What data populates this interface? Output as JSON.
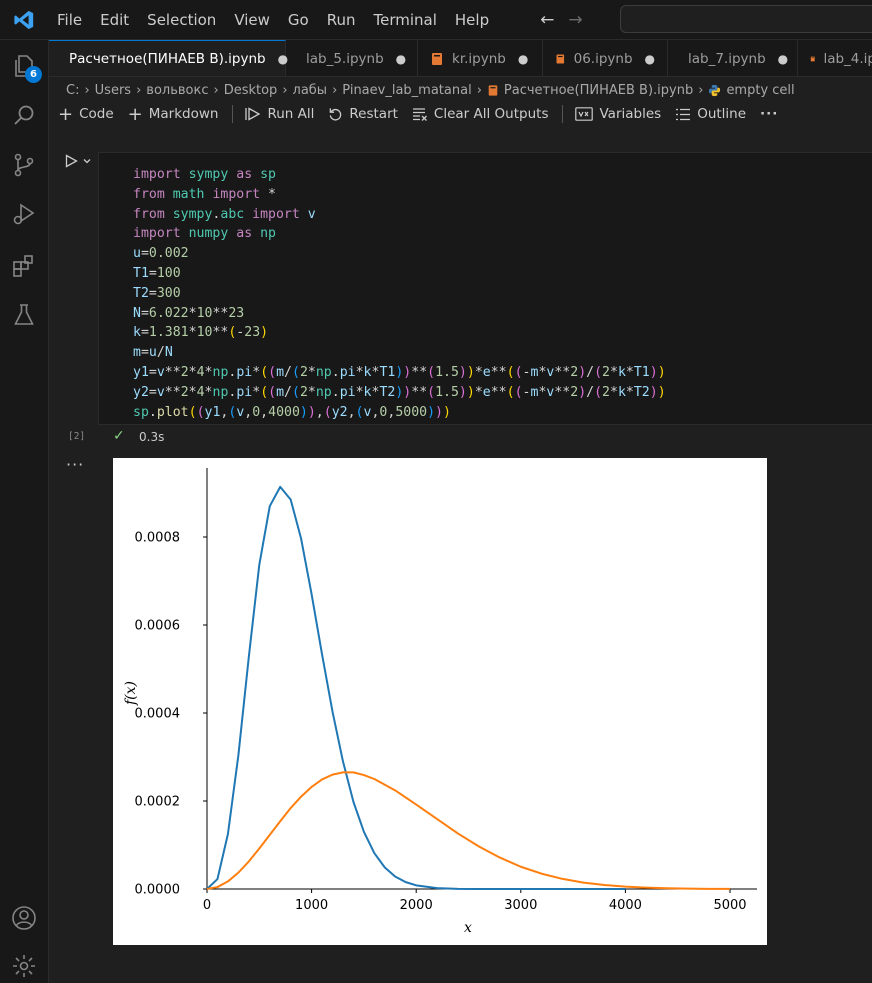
{
  "menu": [
    "File",
    "Edit",
    "Selection",
    "View",
    "Go",
    "Run",
    "Terminal",
    "Help"
  ],
  "activity": {
    "explorer_badge": "6"
  },
  "tabs": [
    {
      "label": "Расчетное(ПИНАЕВ В).ipynb",
      "active": true,
      "modified": "●"
    },
    {
      "label": "lab_5.ipynb",
      "modified": "●"
    },
    {
      "label": "kr.ipynb",
      "modified": "●"
    },
    {
      "label": "06.ipynb",
      "modified": "●"
    },
    {
      "label": "lab_7.ipynb",
      "modified": "●"
    },
    {
      "label": "lab_4.ip"
    }
  ],
  "breadcrumb": [
    "C:",
    "Users",
    "вольвокс",
    "Desktop",
    "лабы",
    "Pinaev_lab_matanal",
    "Расчетное(ПИНАЕВ В).ipynb",
    "empty cell"
  ],
  "toolbar": {
    "code": "Code",
    "markdown": "Markdown",
    "run_all": "Run All",
    "restart": "Restart",
    "clear_outputs": "Clear All Outputs",
    "variables": "Variables",
    "outline": "Outline",
    "more": "···"
  },
  "cell": {
    "exec_count": "[2]",
    "exec_time": "0.3s",
    "output_menu": "···",
    "code_lines": [
      "import sympy as sp",
      "from math import *",
      "from sympy.abc import v",
      "import numpy as np",
      "u=0.002",
      "T1=100",
      "T2=300",
      "N=6.022*10**23",
      "k=1.381*10**(-23)",
      "m=u/N",
      "y1=v**2*4*np.pi*((m/(2*np.pi*k*T1))**(1.5))*e**((-m*v**2)/(2*k*T1))",
      "y2=v**2*4*np.pi*((m/(2*np.pi*k*T2))**(1.5))*e**((-m*v**2)/(2*k*T2))",
      "sp.plot((y1,(v,0,4000)),(y2,(v,0,5000)))"
    ]
  },
  "chart_data": {
    "type": "line",
    "xlabel": "x",
    "ylabel": "f(x)",
    "xlim": [
      0,
      5000
    ],
    "ylim": [
      0,
      0.00096
    ],
    "x_ticks": [
      0,
      1000,
      2000,
      3000,
      4000,
      5000
    ],
    "y_ticks": [
      0.0,
      0.0002,
      0.0004,
      0.0006,
      0.0008
    ],
    "y_tick_labels": [
      "0.0000",
      "0.0002",
      "0.0004",
      "0.0006",
      "0.0008"
    ],
    "grid": false,
    "series": [
      {
        "color": "#1f77b4",
        "x": [
          0,
          100,
          200,
          300,
          400,
          500,
          600,
          700,
          800,
          900,
          1000,
          1100,
          1200,
          1300,
          1400,
          1500,
          1600,
          1700,
          1800,
          1900,
          2000,
          2200,
          2400,
          2600,
          2800,
          3000,
          3200,
          3400,
          3600,
          3800,
          4000
        ],
        "y": [
          0,
          2.26e-05,
          0.000125,
          0.000304,
          0.000528,
          0.000737,
          0.00087,
          0.000914,
          0.000885,
          0.000796,
          0.00067,
          0.000533,
          0.000403,
          0.00029,
          0.000198,
          0.00013,
          8.14e-05,
          4.89e-05,
          2.82e-05,
          1.56e-05,
          8.3e-06,
          2e-06,
          4e-07,
          1e-07,
          0,
          0,
          0,
          0,
          0,
          0,
          0
        ]
      },
      {
        "color": "#ff7f0e",
        "x": [
          0,
          100,
          200,
          300,
          400,
          500,
          600,
          700,
          800,
          900,
          1000,
          1100,
          1200,
          1300,
          1400,
          1500,
          1600,
          1800,
          2000,
          2200,
          2400,
          2600,
          2800,
          3000,
          3200,
          3400,
          3600,
          3800,
          4000,
          4200,
          4400,
          4600,
          4800,
          5000
        ],
        "y": [
          0,
          4.4e-06,
          1.72e-05,
          3.72e-05,
          6.27e-05,
          9.21e-05,
          0.000123,
          0.000154,
          0.000184,
          0.00021,
          0.000232,
          0.000249,
          0.00026,
          0.000265,
          0.000265,
          0.000259,
          0.00025,
          0.000224,
          0.000192,
          0.000159,
          0.000126,
          9.66e-05,
          7.14e-05,
          5.06e-05,
          3.47e-05,
          2.29e-05,
          1.46e-05,
          9e-06,
          5.3e-06,
          3e-06,
          1.7e-06,
          9e-07,
          4e-07,
          2e-07
        ]
      }
    ]
  }
}
